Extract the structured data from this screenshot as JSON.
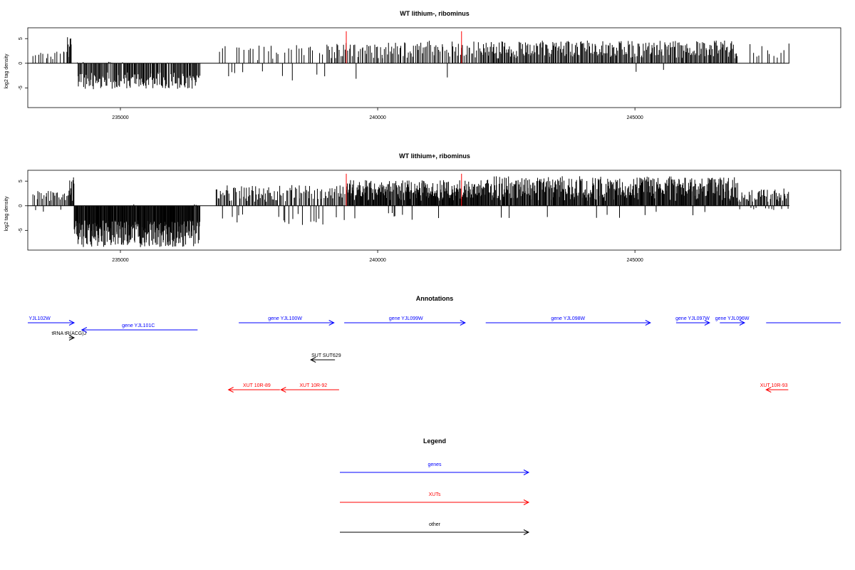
{
  "colors": {
    "genes": "#0000ff",
    "XUTs": "#ff0000",
    "other": "#000000",
    "highlight": "#ff0000"
  },
  "chart_data": [
    {
      "type": "bar",
      "title": "WT lithium-, ribominus",
      "ylabel": "log2 tag density",
      "xlim": [
        233200,
        249000
      ],
      "ylim": [
        -9,
        7.2
      ],
      "xticks": [
        235000,
        240000,
        245000
      ],
      "yticks": [
        5,
        0,
        -5
      ],
      "ytick_labels": [
        "5",
        "0",
        "-5"
      ],
      "baseline": [
        233200,
        248000
      ],
      "highlight_x": [
        239390,
        241630
      ],
      "highlight_height": 6.5,
      "segments": [
        {
          "x": [
            233300,
            233950
          ],
          "n": 14,
          "pmin": 0.8,
          "pmax": 2.5,
          "nfrac": 0.05,
          "nmax": 1.5
        },
        {
          "x": [
            233950,
            234050
          ],
          "n": 8,
          "pmin": 1.0,
          "pmax": 6.5,
          "nfrac": 0.0,
          "nmax": 0
        },
        {
          "x": [
            234150,
            236550
          ],
          "n": 150,
          "pmin": 0.0,
          "pmax": 0.3,
          "nfrac": 0.97,
          "nmax": 5.3
        },
        {
          "x": [
            236900,
            239000
          ],
          "n": 38,
          "pmin": 0.6,
          "pmax": 3.8,
          "nfrac": 0.2,
          "nmax": 3.5
        },
        {
          "x": [
            239000,
            242000
          ],
          "n": 110,
          "pmin": 0.8,
          "pmax": 4.6,
          "nfrac": 0.04,
          "nmax": 3.5
        },
        {
          "x": [
            242000,
            247000
          ],
          "n": 280,
          "pmin": 1.0,
          "pmax": 4.6,
          "nfrac": 0.01,
          "nmax": 2.0
        },
        {
          "x": [
            247200,
            248000
          ],
          "n": 12,
          "pmin": 0.6,
          "pmax": 4.0,
          "nfrac": 0.0,
          "nmax": 0
        }
      ]
    },
    {
      "type": "bar",
      "title": "WT lithium+, ribominus",
      "ylabel": "log2 tag density",
      "xlim": [
        233200,
        249000
      ],
      "ylim": [
        -9,
        7.2
      ],
      "xticks": [
        235000,
        240000,
        245000
      ],
      "yticks": [
        5,
        0,
        -5
      ],
      "ytick_labels": [
        "5",
        "0",
        "-5"
      ],
      "baseline": [
        233200,
        248000
      ],
      "highlight_x": [
        239390,
        241630
      ],
      "highlight_height": 6.5,
      "segments": [
        {
          "x": [
            233300,
            234000
          ],
          "n": 30,
          "pmin": 0.8,
          "pmax": 3.0,
          "nfrac": 0.15,
          "nmax": 2.2
        },
        {
          "x": [
            234000,
            234100
          ],
          "n": 10,
          "pmin": 1.0,
          "pmax": 6.2,
          "nfrac": 0.0,
          "nmax": 0
        },
        {
          "x": [
            234100,
            236550
          ],
          "n": 260,
          "pmin": 0.0,
          "pmax": 0.3,
          "nfrac": 0.98,
          "nmax": 8.4
        },
        {
          "x": [
            236850,
            239400
          ],
          "n": 130,
          "pmin": 0.8,
          "pmax": 4.2,
          "nfrac": 0.12,
          "nmax": 4.0
        },
        {
          "x": [
            239400,
            242000
          ],
          "n": 240,
          "pmin": 1.0,
          "pmax": 5.2,
          "nfrac": 0.03,
          "nmax": 3.0
        },
        {
          "x": [
            242000,
            247000
          ],
          "n": 420,
          "pmin": 1.0,
          "pmax": 6.0,
          "nfrac": 0.02,
          "nmax": 2.5
        },
        {
          "x": [
            247000,
            248000
          ],
          "n": 60,
          "pmin": 0.8,
          "pmax": 3.5,
          "nfrac": 0.15,
          "nmax": 0.9
        }
      ]
    }
  ],
  "annotations": {
    "title": "Annotations",
    "features": [
      {
        "label": "YJL102W",
        "kind": "genes",
        "strand": "+",
        "x1": 233200,
        "x2": 234100,
        "row": 0,
        "label_x": 233220,
        "label_anchor": "start"
      },
      {
        "label": "tRNA tR(ACG)J",
        "kind": "other",
        "strand": "+",
        "x1": 234000,
        "x2": 234100,
        "row": 1,
        "label_x": 234000,
        "label_anchor": "middle"
      },
      {
        "label": "gene YJL101C",
        "kind": "genes",
        "strand": "-",
        "x1": 234250,
        "x2": 236500,
        "row": 2,
        "label_x": 235350,
        "label_anchor": "middle"
      },
      {
        "label": "gene YJL100W",
        "kind": "genes",
        "strand": "+",
        "x1": 237300,
        "x2": 239150,
        "row": 0,
        "label_x": 238200,
        "label_anchor": "middle"
      },
      {
        "label": "gene YJL099W",
        "kind": "genes",
        "strand": "+",
        "x1": 239350,
        "x2": 241700,
        "row": 0,
        "label_x": 240550,
        "label_anchor": "middle"
      },
      {
        "label": "gene YJL098W",
        "kind": "genes",
        "strand": "+",
        "x1": 242100,
        "x2": 245300,
        "row": 0,
        "label_x": 243700,
        "label_anchor": "middle"
      },
      {
        "label": "gene YJL097W",
        "kind": "genes",
        "strand": "+",
        "x1": 245800,
        "x2": 246450,
        "row": 0,
        "label_x": 246120,
        "label_anchor": "middle"
      },
      {
        "label": "gene YJL096W",
        "kind": "genes",
        "strand": "+",
        "x1": 246650,
        "x2": 247130,
        "row": 0,
        "label_x": 246890,
        "label_anchor": "middle"
      },
      {
        "label": "",
        "kind": "genes",
        "strand": "",
        "x1": 247550,
        "x2": 249000,
        "row": 0,
        "label_x": 248000,
        "label_anchor": "middle"
      },
      {
        "label": "SUT SUT629",
        "kind": "other",
        "strand": "-",
        "x1": 238700,
        "x2": 239170,
        "row": 3,
        "label_x": 239000,
        "label_anchor": "middle"
      },
      {
        "label": "XUT 10R-89",
        "kind": "XUTs",
        "strand": "-",
        "x1": 237100,
        "x2": 238100,
        "row": 4,
        "label_x": 237650,
        "label_anchor": "middle"
      },
      {
        "label": "XUT 10R-92",
        "kind": "XUTs",
        "strand": "-",
        "x1": 238120,
        "x2": 239250,
        "row": 4,
        "label_x": 238750,
        "label_anchor": "middle"
      },
      {
        "label": "XUT 10R-93",
        "kind": "XUTs",
        "strand": "-",
        "x1": 247550,
        "x2": 247980,
        "row": 4,
        "label_x": 247700,
        "label_anchor": "middle"
      }
    ]
  },
  "legend": {
    "title": "Legend",
    "items": [
      {
        "label": "genes",
        "kind": "genes"
      },
      {
        "label": "XUTs",
        "kind": "XUTs"
      },
      {
        "label": "other",
        "kind": "other"
      }
    ]
  }
}
